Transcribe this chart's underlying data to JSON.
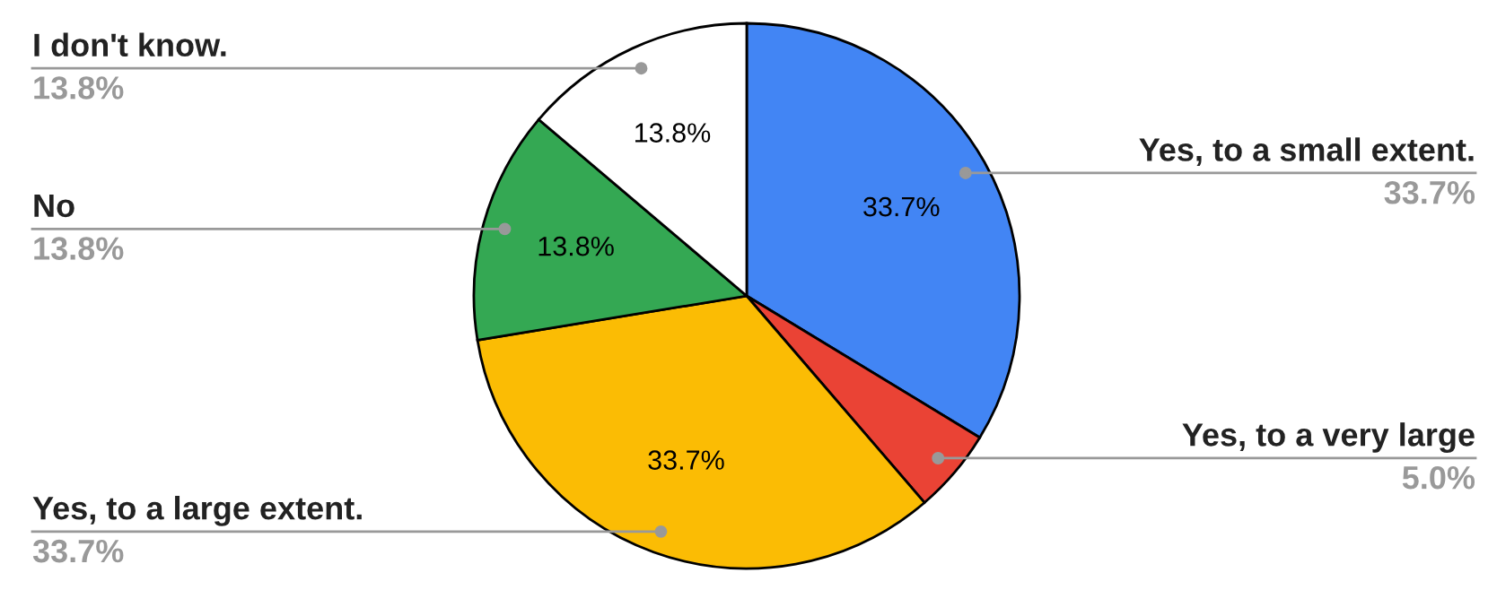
{
  "chart_data": {
    "type": "pie",
    "categories": [
      "Yes, to a small extent.",
      "Yes, to a very large",
      "Yes, to a large extent.",
      "No",
      "I don't know."
    ],
    "values": [
      33.7,
      5.0,
      33.7,
      13.8,
      13.8
    ],
    "colors": [
      "#4285f4",
      "#ea4335",
      "#fbbc04",
      "#34a853",
      "#ffffff"
    ],
    "value_labels": [
      "33.7%",
      "5.0%",
      "33.7%",
      "13.8%",
      "13.8%"
    ],
    "annotations": [
      {
        "text": "33.7%",
        "x": "Yes, to a small extent."
      },
      {
        "text": "33.7%",
        "x": "Yes, to a large extent."
      },
      {
        "text": "13.8%",
        "x": "No"
      },
      {
        "text": "13.8%",
        "x": "I don't know."
      }
    ],
    "legend": false
  }
}
